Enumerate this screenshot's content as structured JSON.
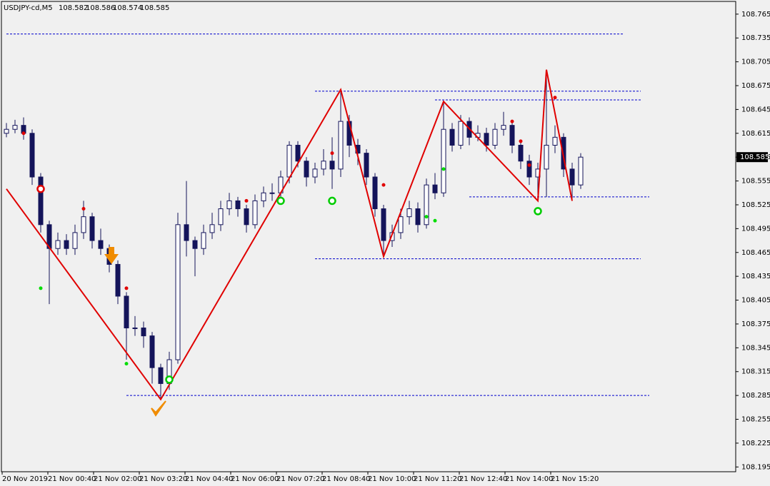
{
  "chart_data": {
    "type": "candlestick",
    "symbol": "USDJPY-cd,M5",
    "header_ohlc": [
      108.582,
      108.586,
      108.574,
      108.585
    ],
    "open": [
      108.615,
      108.62,
      108.625,
      108.615,
      108.56,
      108.5,
      108.47,
      108.48,
      108.47,
      108.49,
      108.51,
      108.48,
      108.47,
      108.45,
      108.41,
      108.37,
      108.37,
      108.36,
      108.32,
      108.3,
      108.33,
      108.5,
      108.48,
      108.47,
      108.49,
      108.5,
      108.52,
      108.53,
      108.52,
      108.5,
      108.53,
      108.54,
      108.54,
      108.56,
      108.6,
      108.58,
      108.56,
      108.57,
      108.58,
      108.57,
      108.63,
      108.6,
      108.59,
      108.56,
      108.52,
      108.48,
      108.49,
      108.51,
      108.52,
      108.5,
      108.55,
      108.54,
      108.62,
      108.6,
      108.63,
      108.61,
      108.615,
      108.6,
      108.62,
      108.625,
      108.6,
      108.58,
      108.56,
      108.57,
      108.6,
      108.61,
      108.57,
      108.55
    ],
    "high": [
      108.628,
      108.632,
      108.635,
      108.62,
      108.565,
      108.505,
      108.49,
      108.488,
      108.5,
      108.53,
      108.515,
      108.495,
      108.475,
      108.455,
      108.415,
      108.385,
      108.378,
      108.365,
      108.325,
      108.34,
      108.515,
      108.555,
      108.485,
      108.5,
      108.515,
      108.53,
      108.54,
      108.535,
      108.525,
      108.538,
      108.548,
      108.552,
      108.568,
      108.605,
      108.605,
      108.585,
      108.578,
      108.595,
      108.61,
      108.67,
      108.638,
      108.608,
      108.595,
      108.565,
      108.525,
      108.5,
      108.52,
      108.53,
      108.528,
      108.558,
      108.565,
      108.655,
      108.628,
      108.638,
      108.635,
      108.625,
      108.622,
      108.628,
      108.642,
      108.63,
      108.605,
      108.588,
      108.578,
      108.695,
      108.625,
      108.615,
      108.578,
      108.59
    ],
    "low": [
      108.61,
      108.615,
      108.607,
      108.55,
      108.49,
      108.4,
      108.462,
      108.462,
      108.462,
      108.482,
      108.47,
      108.462,
      108.44,
      108.4,
      108.33,
      108.36,
      108.345,
      108.3,
      108.28,
      108.292,
      108.325,
      108.46,
      108.435,
      108.462,
      108.482,
      108.492,
      108.512,
      108.51,
      108.49,
      108.495,
      108.522,
      108.53,
      108.532,
      108.552,
      108.572,
      108.548,
      108.552,
      108.562,
      108.545,
      108.56,
      108.585,
      108.575,
      108.55,
      108.51,
      108.46,
      108.472,
      108.482,
      108.5,
      108.49,
      108.495,
      108.532,
      108.535,
      108.592,
      108.595,
      108.6,
      108.605,
      108.592,
      108.595,
      108.612,
      108.59,
      108.57,
      108.55,
      108.53,
      108.535,
      108.59,
      108.56,
      108.53,
      108.545
    ],
    "close": [
      108.62,
      108.625,
      108.615,
      108.56,
      108.5,
      108.47,
      108.48,
      108.47,
      108.49,
      108.51,
      108.48,
      108.47,
      108.45,
      108.41,
      108.37,
      108.37,
      108.36,
      108.32,
      108.3,
      108.33,
      108.5,
      108.48,
      108.47,
      108.49,
      108.5,
      108.52,
      108.53,
      108.52,
      108.5,
      108.53,
      108.54,
      108.54,
      108.56,
      108.6,
      108.58,
      108.56,
      108.57,
      108.58,
      108.57,
      108.63,
      108.6,
      108.59,
      108.56,
      108.52,
      108.48,
      108.49,
      108.51,
      108.52,
      108.5,
      108.55,
      108.54,
      108.62,
      108.6,
      108.63,
      108.61,
      108.615,
      108.6,
      108.62,
      108.625,
      108.6,
      108.58,
      108.56,
      108.57,
      108.6,
      108.61,
      108.57,
      108.55,
      108.585
    ],
    "x_labels": [
      "20 Nov 2019",
      "21 Nov 00:40",
      "21 Nov 02:00",
      "21 Nov 03:20",
      "21 Nov 04:40",
      "21 Nov 06:00",
      "21 Nov 07:20",
      "21 Nov 08:40",
      "21 Nov 10:00",
      "21 Nov 11:20",
      "21 Nov 12:40",
      "21 Nov 14:00",
      "21 Nov 15:20"
    ],
    "ylim": [
      108.189,
      108.781
    ],
    "yticks": [
      108.195,
      108.225,
      108.255,
      108.285,
      108.315,
      108.345,
      108.375,
      108.405,
      108.435,
      108.465,
      108.495,
      108.525,
      108.555,
      108.585,
      108.615,
      108.645,
      108.675,
      108.705,
      108.735,
      108.765
    ],
    "price_label": 108.585,
    "zigzag": {
      "x": [
        0,
        18,
        39,
        44,
        51,
        62,
        63,
        66
      ],
      "values": [
        108.545,
        108.28,
        108.67,
        108.46,
        108.655,
        108.53,
        108.695,
        108.53
      ],
      "color": "#e00000"
    },
    "levels": {
      "values": [
        108.74,
        108.668,
        108.657,
        108.535,
        108.457,
        108.285
      ],
      "start": [
        0,
        36,
        50,
        54,
        36,
        14
      ],
      "end": [
        72,
        74,
        74,
        75,
        74,
        75
      ],
      "color": "#0000cc"
    },
    "signals_red": {
      "x": [
        2,
        9,
        14,
        28,
        38,
        44,
        59,
        60,
        61,
        64
      ],
      "values": [
        108.615,
        108.52,
        108.42,
        108.53,
        108.59,
        108.55,
        108.63,
        108.605,
        108.575,
        108.66
      ],
      "color": "#e00000"
    },
    "signals_green": {
      "x": [
        4,
        14,
        49,
        50,
        51
      ],
      "values": [
        108.42,
        108.325,
        108.51,
        108.505,
        108.57
      ],
      "color": "#00dd00"
    },
    "circles": {
      "x": [
        4,
        19,
        32,
        38,
        62
      ],
      "values": [
        108.545,
        108.305,
        108.53,
        108.53,
        108.517
      ],
      "colors": [
        "#e00000",
        "#00cc00",
        "#00cc00",
        "#00cc00",
        "#00cc00"
      ]
    },
    "candle_color": "#14145a"
  }
}
